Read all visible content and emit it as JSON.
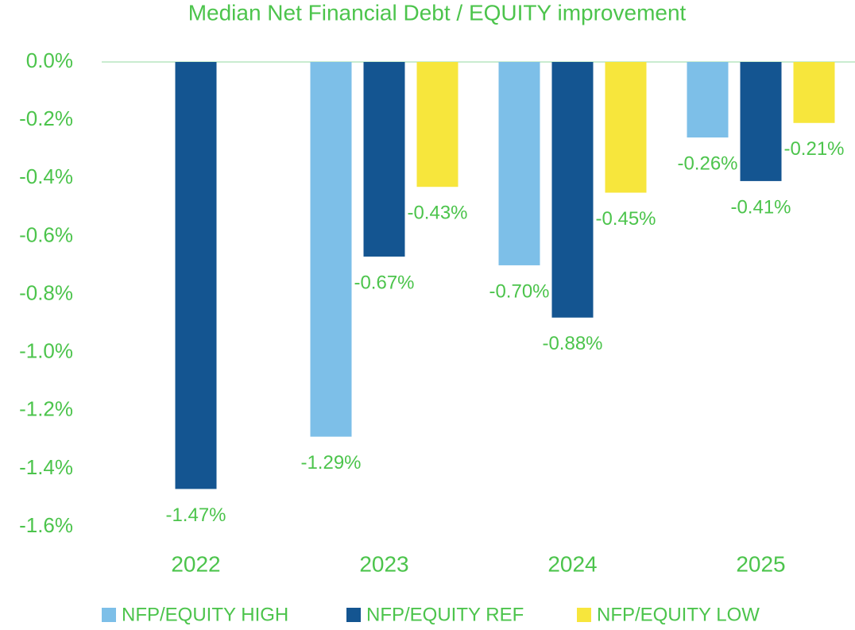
{
  "chart_data": {
    "type": "bar",
    "title": "Median Net Financial Debt / EQUITY improvement",
    "categories": [
      "2022",
      "2023",
      "2024",
      "2025"
    ],
    "series": [
      {
        "name": "NFP/EQUITY HIGH",
        "color": "#7dbfe8",
        "values": [
          null,
          -1.29,
          -0.7,
          -0.26
        ],
        "value_labels": [
          null,
          "-1.29%",
          "-0.70%",
          "-0.26%"
        ]
      },
      {
        "name": "NFP/EQUITY REF",
        "color": "#145591",
        "values": [
          -1.47,
          -0.67,
          -0.88,
          -0.41
        ],
        "value_labels": [
          "-1.47%",
          "-0.67%",
          "-0.88%",
          "-0.41%"
        ]
      },
      {
        "name": "NFP/EQUITY LOW",
        "color": "#f7e63c",
        "values": [
          null,
          -0.43,
          -0.45,
          -0.21
        ],
        "value_labels": [
          null,
          "-0.43%",
          "-0.45%",
          "-0.21%"
        ]
      }
    ],
    "ylim": [
      -1.6,
      0
    ],
    "yticks": [
      {
        "value": 0,
        "label": "0.0%"
      },
      {
        "value": -0.2,
        "label": "-0.2%"
      },
      {
        "value": -0.4,
        "label": "-0.4%"
      },
      {
        "value": -0.6,
        "label": "-0.6%"
      },
      {
        "value": -0.8,
        "label": "-0.8%"
      },
      {
        "value": -1.0,
        "label": "-1.0%"
      },
      {
        "value": -1.2,
        "label": "-1.2%"
      },
      {
        "value": -1.4,
        "label": "-1.4%"
      },
      {
        "value": -1.6,
        "label": "-1.6%"
      }
    ],
    "legend": "bottom"
  }
}
